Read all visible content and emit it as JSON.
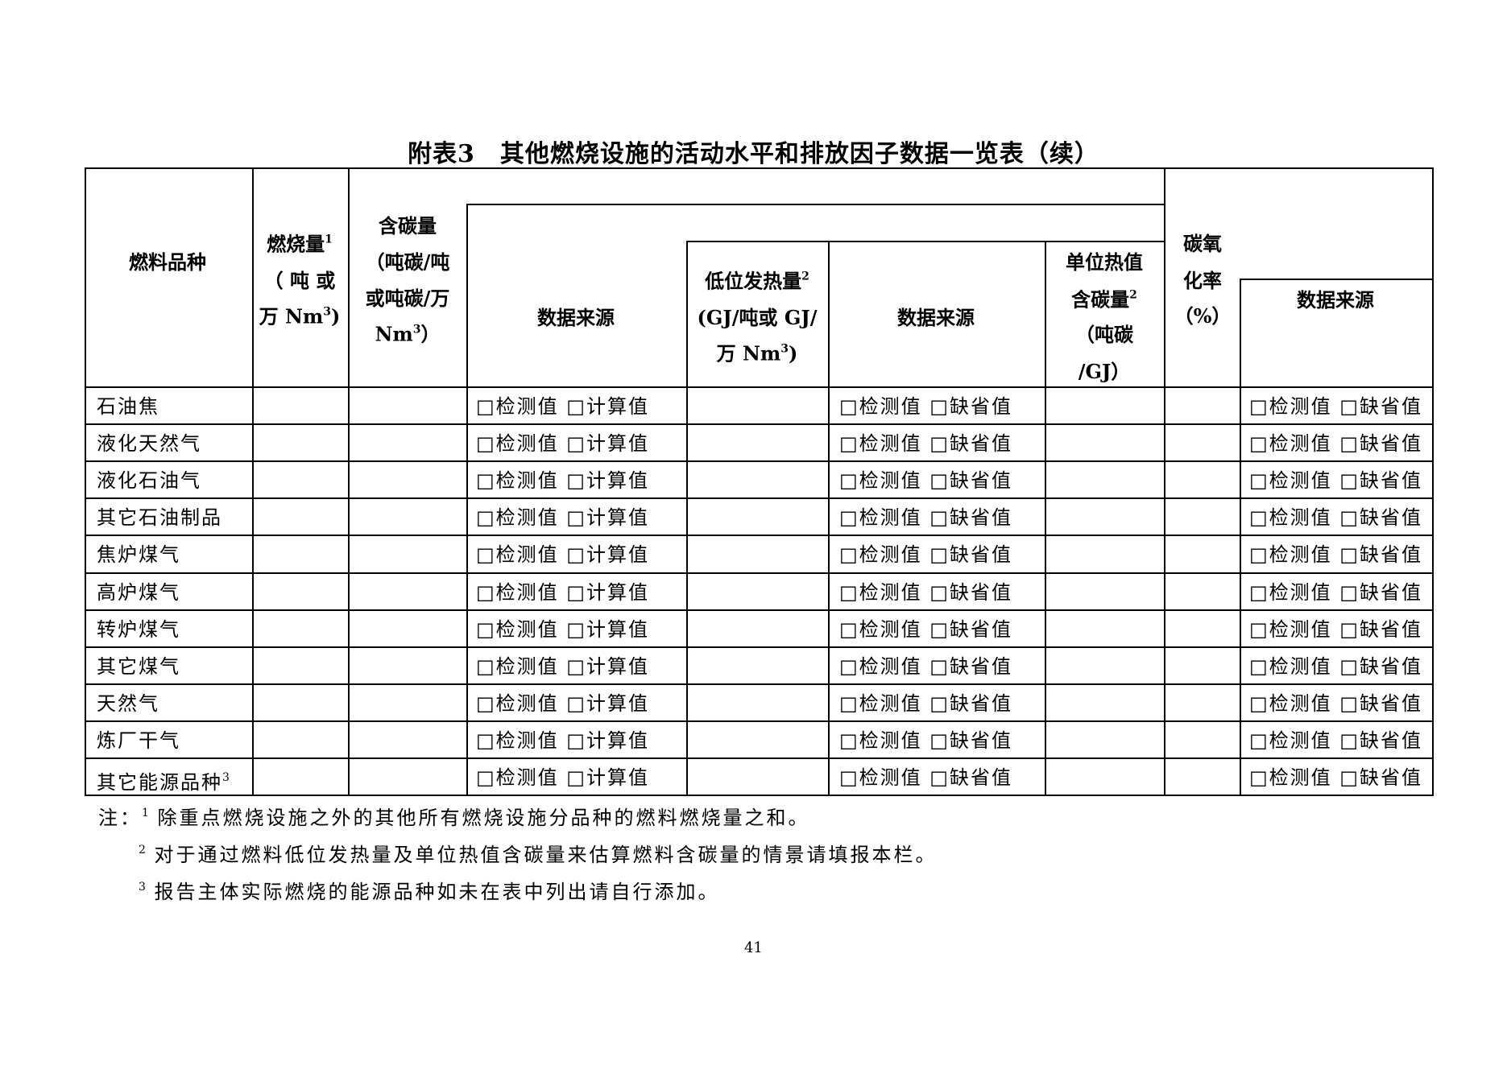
{
  "title": "附表3　其他燃烧设施的活动水平和排放因子数据一览表（续）",
  "header": {
    "fuel_type": "燃料品种",
    "consumption": [
      "燃烧量¹",
      "（ 吨 或",
      "万 Nm³)"
    ],
    "carbon_content": [
      "含碳量",
      "（吨碳/吨",
      "或吨碳/万",
      "Nm³）"
    ],
    "source_1": "数据来源",
    "ncv": [
      "低位发热量²",
      "(GJ/吨或 GJ/",
      "万 Nm³)"
    ],
    "source_2": "数据来源",
    "carbon_per_heat": [
      "单位热值",
      "含碳量²",
      "（吨碳",
      "/GJ）"
    ],
    "oxidation_rate": [
      "碳氧",
      "化率",
      "（%）"
    ],
    "source_3": "数据来源"
  },
  "rows": [
    {
      "fuel": "石油焦"
    },
    {
      "fuel": "液化天然气"
    },
    {
      "fuel": "液化石油气"
    },
    {
      "fuel": "其它石油制品"
    },
    {
      "fuel": "焦炉煤气"
    },
    {
      "fuel": "高炉煤气"
    },
    {
      "fuel": "转炉煤气"
    },
    {
      "fuel": "其它煤气"
    },
    {
      "fuel": "天然气"
    },
    {
      "fuel": "炼厂干气"
    },
    {
      "fuel": "其它能源品种³"
    }
  ],
  "options": {
    "source_1": "□检测值 □计算值",
    "source_2": "□检测值 □缺省值",
    "source_3": "□检测值 □缺省值"
  },
  "notes": [
    {
      "marker": "注：",
      "num": "1",
      "text": "除重点燃烧设施之外的其他所有燃烧设施分品种的燃料燃烧量之和。"
    },
    {
      "marker": "",
      "num": "2",
      "text": "对于通过燃料低位发热量及单位热值含碳量来估算燃料含碳量的情景请填报本栏。"
    },
    {
      "marker": "",
      "num": "3",
      "text": "报告主体实际燃烧的能源品种如未在表中列出请自行添加。"
    }
  ],
  "page_number": "41"
}
